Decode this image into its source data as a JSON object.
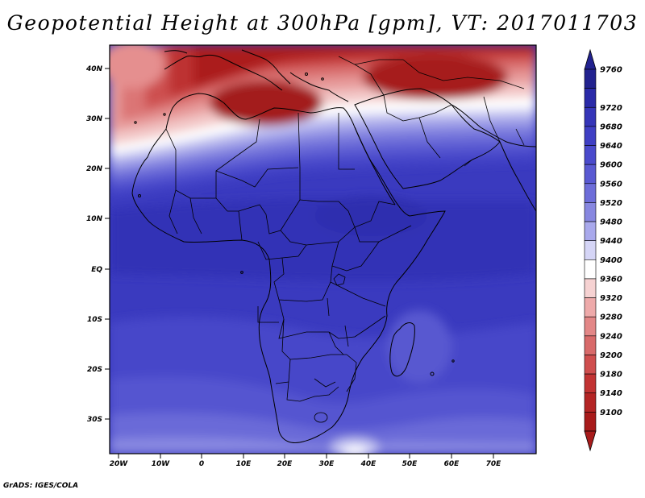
{
  "title": "Geopotential Height at 300hPa [gpm], VT: 2017011703",
  "credit": "GrADS: IGES/COLA",
  "map": {
    "variable": "Geopotential Height",
    "level": "300hPa",
    "units": "gpm",
    "valid_time": "2017011703",
    "region": "Africa",
    "lon_range": [
      -23,
      80
    ],
    "lat_range": [
      -37,
      45
    ],
    "lon_ticks": [
      "20W",
      "10W",
      "0",
      "10E",
      "20E",
      "30E",
      "40E",
      "50E",
      "60E",
      "70E"
    ],
    "lat_ticks": [
      "40N",
      "30N",
      "20N",
      "10N",
      "EQ",
      "10S",
      "20S",
      "30S"
    ]
  },
  "colorbar": {
    "levels": [
      "9760",
      "9720",
      "9680",
      "9640",
      "9600",
      "9560",
      "9520",
      "9480",
      "9440",
      "9400",
      "9360",
      "9320",
      "9280",
      "9240",
      "9200",
      "9180",
      "9140",
      "9100"
    ],
    "colors": [
      "#22228f",
      "#2a2aa8",
      "#3535b8",
      "#3f3fc4",
      "#4a4acc",
      "#5959d2",
      "#6d6dd9",
      "#8787e0",
      "#a9a9ec",
      "#d5d5f6",
      "#ffffff",
      "#f6d2d2",
      "#eeaaaa",
      "#e38787",
      "#d86a6a",
      "#cf4e4e",
      "#c23333",
      "#b42525",
      "#a81b1b"
    ],
    "extend": "both"
  }
}
